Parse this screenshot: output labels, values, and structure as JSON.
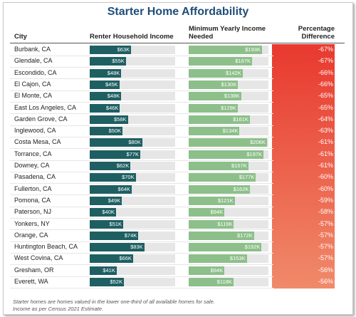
{
  "title": "Starter Home Affordability",
  "columns": {
    "city": "City",
    "renter_income": "Renter Household Income",
    "income_needed_line1": "Minimum Yearly Income",
    "income_needed_line2": "Needed",
    "pct_line1": "Percentage",
    "pct_line2": "Difference"
  },
  "colors": {
    "title": "#1f4e79",
    "income_bar": "#1e5f62",
    "needed_bar": "#8dbf8a",
    "pct_top": "#e8392e",
    "pct_bottom": "#f08a6a"
  },
  "chart_data": {
    "type": "table",
    "title": "Starter Home Affordability",
    "rows": [
      {
        "city": "Burbank, CA",
        "income": 63,
        "income_label": "$63K",
        "needed": 193,
        "needed_label": "$193K",
        "pct": "-67%"
      },
      {
        "city": "Glendale, CA",
        "income": 55,
        "income_label": "$55K",
        "needed": 167,
        "needed_label": "$167K",
        "pct": "-67%"
      },
      {
        "city": "Escondido, CA",
        "income": 48,
        "income_label": "$48K",
        "needed": 142,
        "needed_label": "$142K",
        "pct": "-66%"
      },
      {
        "city": "El Cajon, CA",
        "income": 45,
        "income_label": "$45K",
        "needed": 130,
        "needed_label": "$130K",
        "pct": "-66%"
      },
      {
        "city": "El Monte, CA",
        "income": 48,
        "income_label": "$48K",
        "needed": 138,
        "needed_label": "$138K",
        "pct": "-65%"
      },
      {
        "city": "East Los Angeles, CA",
        "income": 46,
        "income_label": "$46K",
        "needed": 129,
        "needed_label": "$129K",
        "pct": "-65%"
      },
      {
        "city": "Garden Grove, CA",
        "income": 58,
        "income_label": "$58K",
        "needed": 161,
        "needed_label": "$161K",
        "pct": "-64%"
      },
      {
        "city": "Inglewood, CA",
        "income": 50,
        "income_label": "$50K",
        "needed": 134,
        "needed_label": "$134K",
        "pct": "-63%"
      },
      {
        "city": "Costa Mesa, CA",
        "income": 80,
        "income_label": "$80K",
        "needed": 206,
        "needed_label": "$206K",
        "pct": "-61%"
      },
      {
        "city": "Torrance, CA",
        "income": 77,
        "income_label": "$77K",
        "needed": 197,
        "needed_label": "$197K",
        "pct": "-61%"
      },
      {
        "city": "Downey, CA",
        "income": 62,
        "income_label": "$62K",
        "needed": 157,
        "needed_label": "$157K",
        "pct": "-61%"
      },
      {
        "city": "Pasadena, CA",
        "income": 70,
        "income_label": "$70K",
        "needed": 177,
        "needed_label": "$177K",
        "pct": "-60%"
      },
      {
        "city": "Fullerton, CA",
        "income": 64,
        "income_label": "$64K",
        "needed": 162,
        "needed_label": "$162K",
        "pct": "-60%"
      },
      {
        "city": "Pomona, CA",
        "income": 49,
        "income_label": "$49K",
        "needed": 121,
        "needed_label": "$121K",
        "pct": "-59%"
      },
      {
        "city": "Paterson, NJ",
        "income": 40,
        "income_label": "$40K",
        "needed": 94,
        "needed_label": "$94K",
        "pct": "-58%"
      },
      {
        "city": "Yonkers, NY",
        "income": 51,
        "income_label": "$51K",
        "needed": 119,
        "needed_label": "$119K",
        "pct": "-57%"
      },
      {
        "city": "Orange, CA",
        "income": 74,
        "income_label": "$74K",
        "needed": 172,
        "needed_label": "$172K",
        "pct": "-57%"
      },
      {
        "city": "Huntington Beach, CA",
        "income": 83,
        "income_label": "$83K",
        "needed": 192,
        "needed_label": "$192K",
        "pct": "-57%"
      },
      {
        "city": "West Covina, CA",
        "income": 66,
        "income_label": "$66K",
        "needed": 153,
        "needed_label": "$153K",
        "pct": "-57%"
      },
      {
        "city": "Gresham, OR",
        "income": 41,
        "income_label": "$41K",
        "needed": 94,
        "needed_label": "$94K",
        "pct": "-56%"
      },
      {
        "city": "Everett, WA",
        "income": 52,
        "income_label": "$52K",
        "needed": 118,
        "needed_label": "$118K",
        "pct": "-56%"
      }
    ],
    "income_max": 130,
    "needed_max": 210
  },
  "footnote": {
    "line1": "Starter homes are homes valued in the lower one-third of all available homes for sale.",
    "line2": "Income as per Census 2021 Estimate."
  }
}
